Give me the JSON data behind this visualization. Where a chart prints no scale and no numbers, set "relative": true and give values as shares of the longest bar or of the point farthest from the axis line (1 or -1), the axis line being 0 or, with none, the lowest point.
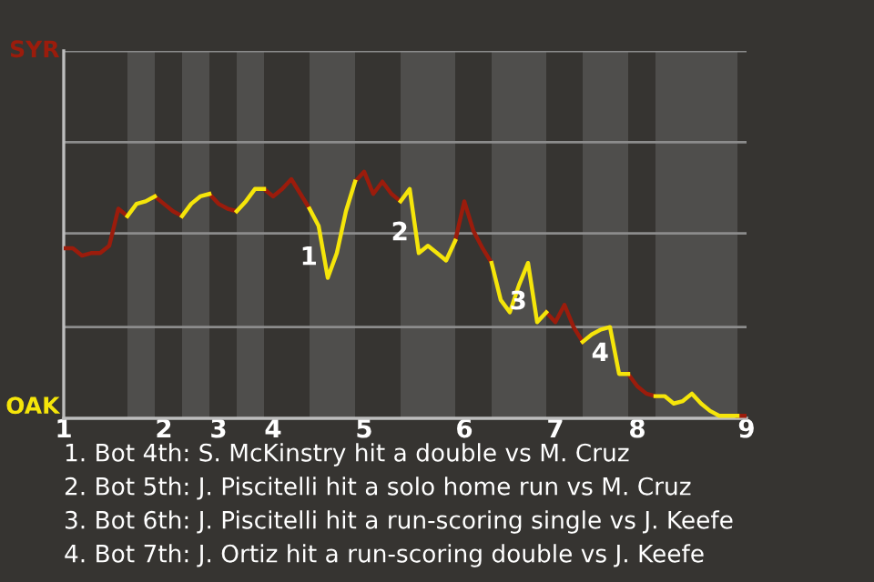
{
  "chart_data": {
    "type": "line",
    "relative": true,
    "annotations": [
      "1",
      "2",
      "3",
      "4",
      "1. Bot 4th: S. McKinstry hit a double vs M. Cruz",
      "2. Bot 5th: J. Piscitelli hit a solo home run vs M. Cruz",
      "3. Bot 6th: J. Piscitelli hit a run-scoring single vs J. Keefe",
      "4. Bot 7th: J. Ortiz hit a run-scoring double vs J. Keefe"
    ],
    "categories": [
      "1",
      null,
      null,
      null,
      null,
      null,
      null,
      null,
      null,
      null,
      null,
      "2",
      null,
      null,
      null,
      null,
      null,
      "3",
      null,
      null,
      null,
      null,
      null,
      "4",
      null,
      null,
      null,
      null,
      null,
      null,
      null,
      null,
      null,
      "5",
      null,
      null,
      null,
      null,
      null,
      null,
      null,
      null,
      null,
      null,
      "6",
      null,
      null,
      null,
      null,
      null,
      null,
      null,
      null,
      null,
      "7",
      null,
      null,
      null,
      null,
      null,
      null,
      null,
      null,
      "8",
      null,
      null,
      null,
      null,
      null,
      null,
      null,
      null,
      null,
      null,
      null,
      "9"
    ],
    "series": [
      {
        "name": "SYR",
        "color": "#9b1c0c",
        "values": [
          0.69,
          0.69,
          0.66,
          0.67,
          0.67,
          0.7,
          0.85,
          0.82,
          null,
          null,
          0.9,
          0.87,
          0.84,
          0.82,
          null,
          null,
          0.91,
          0.87,
          0.85,
          0.84,
          null,
          null,
          0.93,
          0.9,
          0.93,
          0.97,
          0.91,
          0.85,
          null,
          null,
          null,
          null,
          0.96,
          1,
          0.91,
          0.96,
          0.91,
          0.88,
          null,
          null,
          null,
          null,
          null,
          0.72,
          0.88,
          0.76,
          0.69,
          0.63,
          null,
          null,
          null,
          null,
          null,
          0.43,
          0.39,
          0.46,
          0.37,
          0.31,
          null,
          null,
          null,
          null,
          0.18,
          0.13,
          0.1,
          0.09,
          null,
          null,
          null,
          null,
          null,
          null,
          null,
          null,
          0.01,
          0.01
        ]
      },
      {
        "name": "OAK",
        "color": "#f5e50a",
        "values": [
          null,
          null,
          null,
          null,
          null,
          null,
          null,
          0.82,
          0.87,
          0.88,
          0.9,
          null,
          null,
          0.82,
          0.87,
          0.9,
          0.91,
          null,
          null,
          0.84,
          0.88,
          0.93,
          0.93,
          null,
          null,
          null,
          null,
          0.85,
          0.78,
          0.57,
          0.67,
          0.84,
          0.96,
          null,
          null,
          null,
          null,
          0.88,
          0.93,
          0.67,
          0.7,
          0.67,
          0.64,
          0.72,
          null,
          null,
          null,
          0.63,
          0.48,
          0.43,
          0.54,
          0.63,
          0.39,
          0.43,
          null,
          null,
          null,
          0.31,
          0.34,
          0.36,
          0.37,
          0.18,
          0.18,
          null,
          null,
          0.09,
          0.09,
          0.06,
          0.07,
          0.1,
          0.06,
          0.03,
          0.01,
          0.01,
          0.01,
          null
        ]
      }
    ],
    "ref_lines": [
      {
        "axis": "y",
        "value": 0.37,
        "color": "#8c8c8c"
      },
      {
        "axis": "y",
        "value": 0.75,
        "color": "#8c8c8c"
      },
      {
        "axis": "y",
        "value": 1.12,
        "color": "#8c8c8c"
      },
      {
        "axis": "y",
        "value": 1.49,
        "color": "#8c8c8c"
      }
    ],
    "line_style": "solid",
    "marker": "none"
  }
}
